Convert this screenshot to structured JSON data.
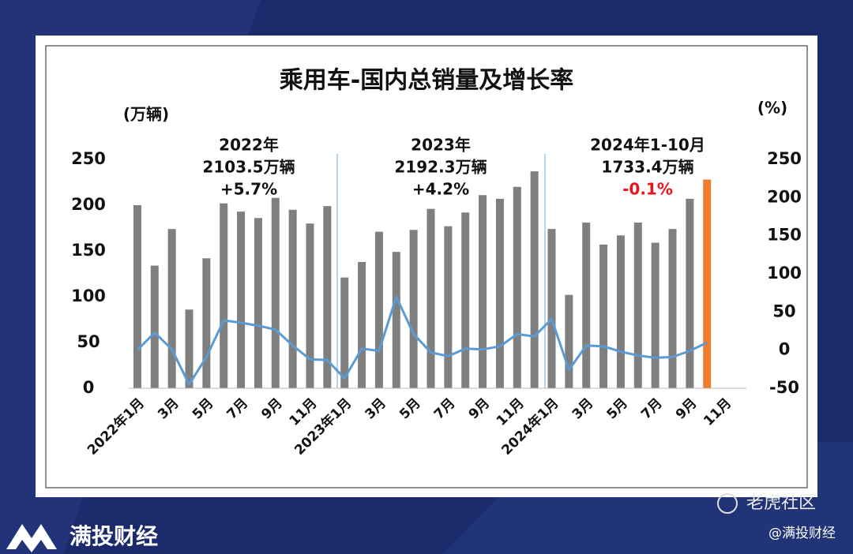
{
  "chart_data": {
    "type": "bar_line",
    "title": "乘用车-国内总销量及增长率",
    "y_label": "(万辆)",
    "y2_label": "(%)",
    "categories": [
      "2022年1月",
      null,
      "3月",
      null,
      "5月",
      null,
      "7月",
      null,
      "9月",
      null,
      "11月",
      null,
      "2023年1月",
      null,
      "3月",
      null,
      "5月",
      null,
      "7月",
      null,
      "9月",
      null,
      "11月",
      null,
      "2024年1月",
      null,
      "3月",
      null,
      "5月",
      null,
      "7月",
      null,
      "9月",
      null,
      "11月"
    ],
    "series": [
      {
        "type": "bar",
        "color": "#7f7f7f",
        "highlight_color": "#ed7d31",
        "values": [
          200,
          134,
          174,
          86,
          142,
          202,
          193,
          186,
          208,
          195,
          180,
          199,
          121,
          138,
          171,
          149,
          173,
          196,
          177,
          192,
          211,
          207,
          220,
          237,
          174,
          102,
          181,
          157,
          167,
          181,
          159,
          174,
          207,
          228,
          null
        ]
      },
      {
        "type": "line",
        "axis": "y2",
        "color": "#5b9bd5",
        "values": [
          0,
          23,
          1,
          -45,
          -9,
          39,
          36,
          32,
          27,
          6,
          -12,
          -13,
          -37,
          2,
          -1,
          70,
          21,
          -3,
          -8,
          2,
          1,
          5,
          21,
          18,
          41,
          -26,
          6,
          5,
          -2,
          -7,
          -10,
          -9,
          -1,
          10,
          null
        ]
      }
    ],
    "ylim": [
      0,
      250
    ],
    "yticks": [
      0,
      50,
      100,
      150,
      200,
      250
    ],
    "y2lim": [
      -50,
      250
    ],
    "y2ticks": [
      -50,
      0,
      50,
      100,
      150,
      200,
      250
    ],
    "annotations": [
      {
        "lines": [
          "2022年",
          "2103.5万辆",
          "+5.7%"
        ]
      },
      {
        "lines": [
          "2023年",
          "2192.3万辆",
          "+4.2%"
        ]
      },
      {
        "lines": [
          "2024年1-10月",
          "1733.4万辆",
          "-0.1%"
        ],
        "last_line_color": "#e8161b"
      }
    ]
  },
  "footer": {
    "brand": "满投财经",
    "community": "老虎社区",
    "handle": "@满投财经"
  }
}
